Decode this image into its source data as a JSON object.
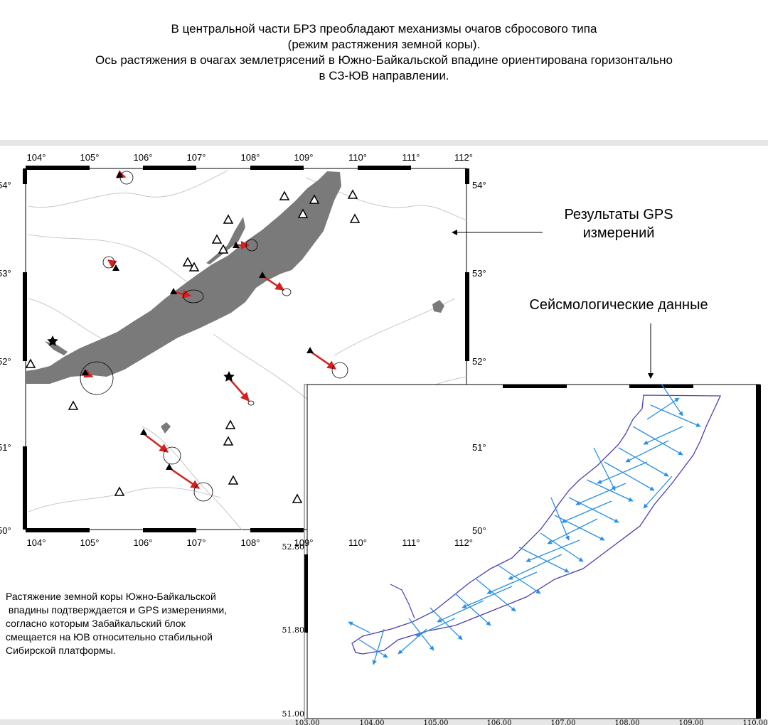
{
  "title": {
    "lines": [
      "В центральной части БРЗ преобладают механизмы очагов сбросового типа",
      "(режим растяжения земной коры).",
      "Ось растяжения в очагах землетрясений в Южно-Байкальской впадине ориентирована горизонтально",
      "в СЗ-ЮВ направлении."
    ]
  },
  "map": {
    "lon_ticks_top": [
      "104°",
      "105°",
      "106°",
      "107°",
      "108°",
      "109°",
      "110°",
      "111°",
      "112°"
    ],
    "lon_ticks_bottom": [
      "104°",
      "105°",
      "106°",
      "107°",
      "108°",
      "109°",
      "110°",
      "111°",
      "112°"
    ],
    "lat_ticks_left": [
      "54°",
      "53°",
      "52°",
      "51°",
      "50°"
    ],
    "lat_ticks_right": [
      "54°",
      "53°",
      "52°",
      "51°",
      "50°"
    ],
    "colors": {
      "lake": "#7a7a7a",
      "vector": "#d42020",
      "rivers": "#c8c8c8"
    }
  },
  "annotations": {
    "gps_results": [
      "Результаты GPS",
      "измерений"
    ],
    "seismo_data": "Сейсмологические данные"
  },
  "inset": {
    "y_ticks": [
      "52.80",
      "51.80",
      "51.00"
    ],
    "x_ticks": [
      "103.00",
      "104.00",
      "105.00",
      "106.00",
      "107.00",
      "108.00",
      "109.00",
      "110.00"
    ],
    "colors": {
      "arrows": "#2a8fe6",
      "outline": "#4a3fb0"
    }
  },
  "bottom_text": {
    "lines": [
      "Растяжение земной коры Южно-Байкальской",
      " впадины подтверждается и GPS измерениями,",
      "согласно которым Забайкальский блок",
      "смещается на ЮВ относительно стабильной",
      "Сибирской платформы."
    ]
  }
}
